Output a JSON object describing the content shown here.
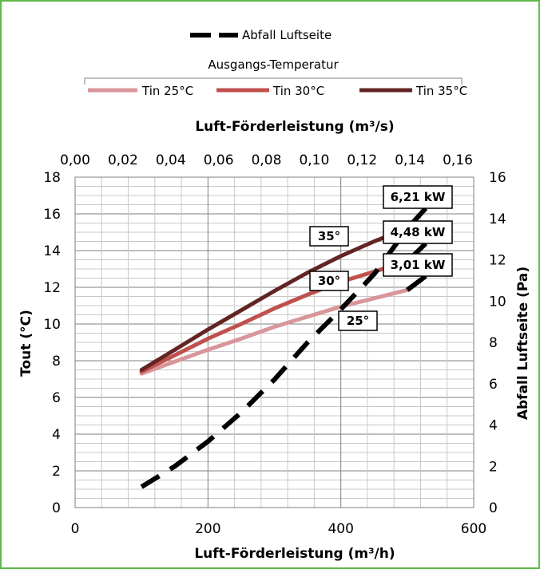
{
  "chart_data": {
    "type": "line",
    "x": [
      100,
      150,
      200,
      250,
      300,
      350,
      400,
      450,
      500
    ],
    "x_label_bottom": "Luft-Förderleistung (m³/h)",
    "x_label_top": "Luft-Förderleistung (m³/s)",
    "y_label_left": "Tout (°C)",
    "y_label_right": "Abfall Luftseite (Pa)",
    "xlim_bottom": [
      0,
      600
    ],
    "xlim_top": [
      0.0,
      0.16667
    ],
    "ylim_left": [
      0,
      18
    ],
    "ylim_right": [
      0,
      16
    ],
    "x_ticks_bottom": [
      "0",
      "200",
      "400",
      "600"
    ],
    "x_ticks_bottom_values": [
      0,
      200,
      400,
      600
    ],
    "x_ticks_top": [
      "0,00",
      "0,02",
      "0,04",
      "0,06",
      "0,08",
      "0,10",
      "0,12",
      "0,14",
      "0,16"
    ],
    "x_ticks_top_values": [
      0.0,
      0.02,
      0.04,
      0.06,
      0.08,
      0.1,
      0.12,
      0.14,
      0.16
    ],
    "y_ticks_left": [
      "0",
      "2",
      "4",
      "6",
      "8",
      "10",
      "12",
      "14",
      "16",
      "18"
    ],
    "y_ticks_right": [
      "0",
      "2",
      "4",
      "6",
      "8",
      "10",
      "12",
      "14",
      "16"
    ],
    "grid": true,
    "legend_top": {
      "label": "Abfall Luftseite",
      "placement": "top"
    },
    "legend_group_title": "Ausgangs-Temperatur",
    "series": [
      {
        "name": "Tin 25°C",
        "axis": "left",
        "color": "#d9969a",
        "values": [
          7.3,
          7.95,
          8.6,
          9.2,
          9.85,
          10.4,
          10.95,
          11.4,
          11.85
        ]
      },
      {
        "name": "Tin 30°C",
        "axis": "left",
        "color": "#c0504d",
        "values": [
          7.4,
          8.3,
          9.2,
          10.0,
          10.85,
          11.6,
          12.3,
          12.85,
          13.4
        ]
      },
      {
        "name": "Tin 35°C",
        "axis": "left",
        "color": "#632523",
        "values": [
          7.5,
          8.6,
          9.7,
          10.75,
          11.8,
          12.8,
          13.7,
          14.5,
          15.2
        ]
      },
      {
        "name": "Abfall Luftseite",
        "axis": "right",
        "color": "#000000",
        "dash": true,
        "values": [
          1.0,
          2.0,
          3.2,
          4.6,
          6.2,
          8.0,
          9.6,
          11.3,
          13.5
        ]
      }
    ],
    "annotations": [
      {
        "text": "35°",
        "series": "Tin 35°C"
      },
      {
        "text": "30°",
        "series": "Tin 30°C"
      },
      {
        "text": "25°",
        "series": "Tin 25°C"
      },
      {
        "text": "6,21 kW",
        "series": "Tin 35°C"
      },
      {
        "text": "4,48 kW",
        "series": "Tin 30°C"
      },
      {
        "text": "3,01 kW",
        "series": "Tin 25°C"
      }
    ]
  }
}
